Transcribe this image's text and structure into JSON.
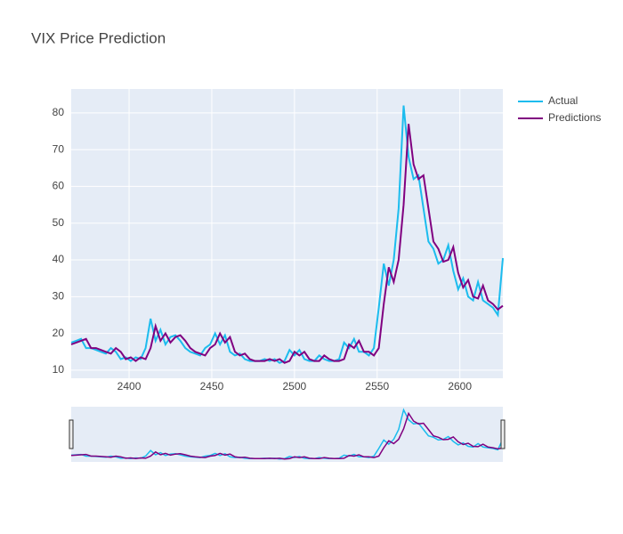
{
  "chart_data": {
    "type": "line",
    "title": "VIX Price Prediction",
    "x": [
      2365,
      2368,
      2371,
      2374,
      2377,
      2380,
      2383,
      2386,
      2389,
      2392,
      2395,
      2398,
      2401,
      2404,
      2407,
      2410,
      2413,
      2416,
      2419,
      2422,
      2425,
      2428,
      2431,
      2434,
      2437,
      2440,
      2443,
      2446,
      2449,
      2452,
      2455,
      2458,
      2461,
      2464,
      2467,
      2470,
      2473,
      2476,
      2479,
      2482,
      2485,
      2488,
      2491,
      2494,
      2497,
      2500,
      2503,
      2506,
      2509,
      2512,
      2515,
      2518,
      2521,
      2524,
      2527,
      2530,
      2533,
      2536,
      2539,
      2542,
      2545,
      2548,
      2551,
      2554,
      2557,
      2560,
      2563,
      2566,
      2569,
      2572,
      2575,
      2578,
      2581,
      2584,
      2587,
      2590,
      2593,
      2596,
      2599,
      2602,
      2605,
      2608,
      2611,
      2614,
      2617,
      2620,
      2623,
      2626
    ],
    "series": [
      {
        "name": "Actual",
        "color": "#1cbcee",
        "values": [
          17.5,
          18,
          18.5,
          16,
          16,
          15.5,
          15,
          14.5,
          16,
          15,
          13,
          13.5,
          12.5,
          13.5,
          13,
          16,
          24,
          18,
          21,
          17,
          19,
          19.5,
          18,
          16,
          15,
          14.5,
          14,
          16,
          17,
          20,
          17,
          19.5,
          15,
          14,
          14.5,
          13,
          12.5,
          12.5,
          12.5,
          13,
          12.5,
          13,
          12,
          12.5,
          15.5,
          14,
          15.5,
          13,
          12.5,
          12.5,
          14,
          13,
          12.5,
          12.5,
          13,
          17.5,
          16,
          18.5,
          15,
          15,
          14,
          16,
          27,
          39,
          33,
          40,
          54,
          82,
          68,
          62,
          63,
          54,
          45,
          43,
          39,
          40,
          44,
          37,
          32,
          35,
          30,
          29,
          34,
          29,
          28,
          27,
          25,
          40.5
        ]
      },
      {
        "name": "Predictions",
        "color": "#800080",
        "values": [
          17,
          17.5,
          18,
          18.5,
          16,
          16,
          15.5,
          15,
          14.5,
          16,
          15,
          13,
          13.5,
          12.5,
          13.5,
          13,
          16,
          22,
          18,
          20,
          17.5,
          19,
          19.5,
          18,
          16,
          15,
          14.5,
          14,
          16,
          17,
          20,
          17.5,
          19,
          15,
          14,
          14.5,
          13,
          12.5,
          12.5,
          12.5,
          13,
          12.5,
          13,
          12,
          12.5,
          15,
          14,
          15,
          13,
          12.5,
          12.5,
          14,
          13,
          12.5,
          12.5,
          13,
          17,
          16,
          18,
          15,
          15,
          14,
          16,
          28,
          38,
          34,
          40,
          55,
          77,
          66,
          62,
          63,
          54,
          45,
          43,
          39.5,
          40,
          43.5,
          36.5,
          32.5,
          34.5,
          30,
          29.5,
          33,
          29,
          28,
          26.5,
          27.5
        ]
      }
    ],
    "xlim": [
      2365,
      2626
    ],
    "ylim": [
      7.8,
      86.5
    ],
    "xticks": [
      2400,
      2450,
      2500,
      2550,
      2600
    ],
    "yticks": [
      10,
      20,
      30,
      40,
      50,
      60,
      70,
      80
    ],
    "grid": true,
    "legend": "top-right",
    "rangeslider": true
  }
}
